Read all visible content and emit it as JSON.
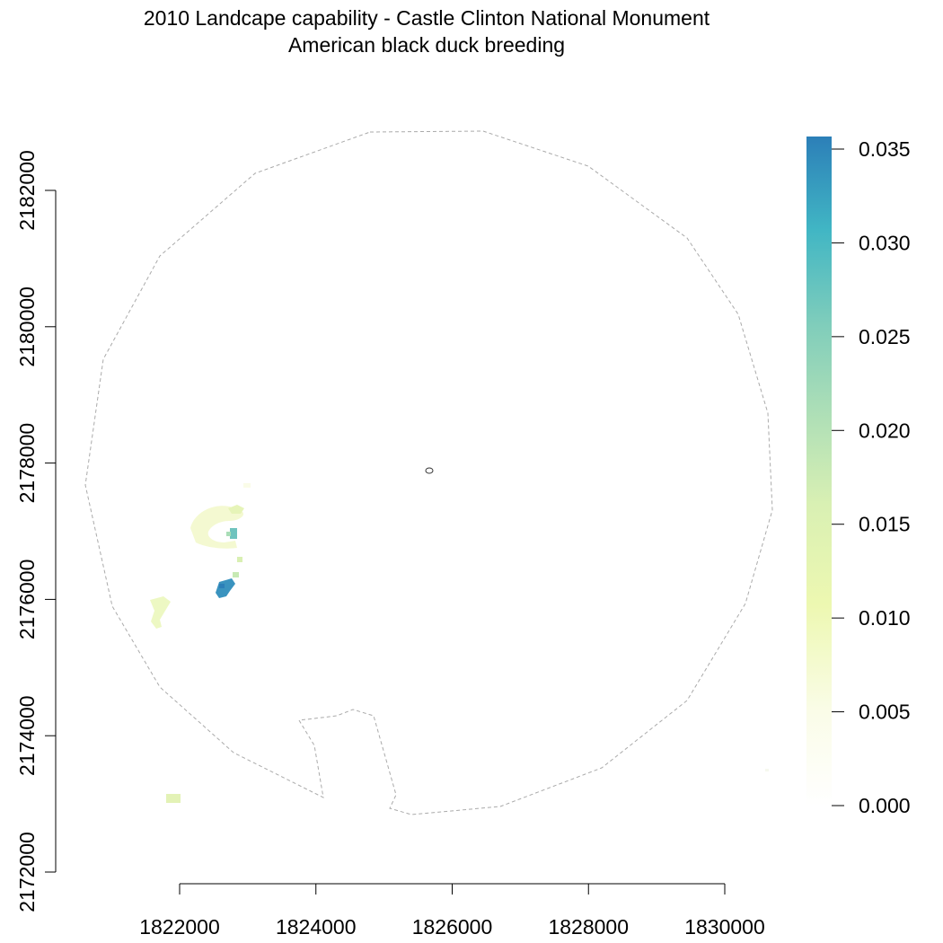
{
  "title": "2010 Landcape capability - Castle Clinton National Monument",
  "subtitle": "American black duck breeding",
  "x_axis": {
    "ticks": [
      "1822000",
      "1824000",
      "1826000",
      "1828000",
      "1830000"
    ],
    "values": [
      1822000,
      1824000,
      1826000,
      1828000,
      1830000
    ],
    "range": [
      1822000,
      1830000
    ]
  },
  "y_axis": {
    "ticks": [
      "2172000",
      "2174000",
      "2176000",
      "2178000",
      "2180000",
      "2182000"
    ],
    "values": [
      2172000,
      2174000,
      2176000,
      2178000,
      2180000,
      2182000
    ],
    "range": [
      2172000,
      2182000
    ]
  },
  "legend": {
    "ticks": [
      "0.000",
      "0.005",
      "0.010",
      "0.015",
      "0.020",
      "0.025",
      "0.030",
      "0.035"
    ],
    "values": [
      0.0,
      0.005,
      0.01,
      0.015,
      0.02,
      0.025,
      0.03,
      0.035
    ],
    "range": [
      0.0,
      0.0356
    ],
    "colors": [
      "#ffffff",
      "#fafce8",
      "#edf8b1",
      "#c7e9b4",
      "#7fcdbb",
      "#41b6c4",
      "#2c7fb8"
    ]
  },
  "colors": {
    "boundary": "#aaaaaa",
    "monument": "#333333"
  }
}
